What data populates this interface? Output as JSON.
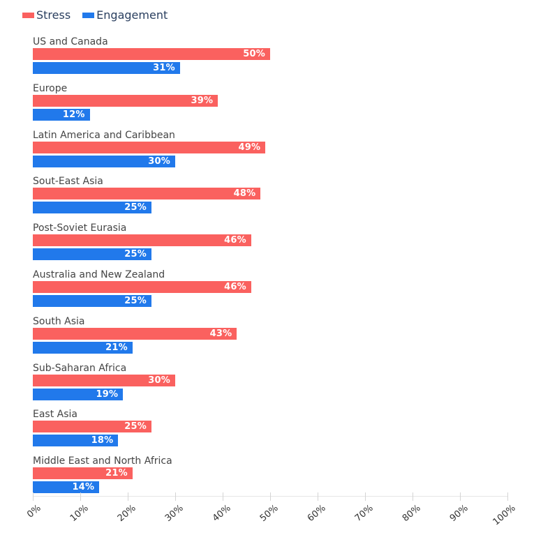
{
  "legend": [
    {
      "label": "Stress",
      "color": "#fa615f"
    },
    {
      "label": "Engagement",
      "color": "#2179eb"
    }
  ],
  "chart_data": {
    "type": "bar",
    "orientation": "horizontal",
    "title": "",
    "xlabel": "",
    "ylabel": "",
    "xlim": [
      0,
      100
    ],
    "grid": false,
    "legend_position": "top-left",
    "categories": [
      "US and Canada",
      "Europe",
      "Latin America and Caribbean",
      "Sout-East Asia",
      "Post-Soviet Eurasia",
      "Australia and New Zealand",
      "South Asia",
      "Sub-Saharan Africa",
      "East Asia",
      "Middle East and North Africa"
    ],
    "series": [
      {
        "name": "Stress",
        "color": "#fa615f",
        "values": [
          50,
          39,
          49,
          48,
          46,
          46,
          43,
          30,
          25,
          21
        ],
        "labels": [
          "50%",
          "39%",
          "49%",
          "48%",
          "46%",
          "46%",
          "43%",
          "30%",
          "25%",
          "21%"
        ]
      },
      {
        "name": "Engagement",
        "color": "#2179eb",
        "values": [
          31,
          12,
          30,
          25,
          25,
          25,
          21,
          19,
          18,
          14
        ],
        "labels": [
          "31%",
          "12%",
          "30%",
          "25%",
          "25%",
          "25%",
          "21%",
          "19%",
          "18%",
          "14%"
        ]
      }
    ],
    "x_ticks": [
      "0%",
      "10%",
      "20%",
      "30%",
      "40%",
      "50%",
      "60%",
      "70%",
      "80%",
      "90%",
      "100%"
    ]
  }
}
